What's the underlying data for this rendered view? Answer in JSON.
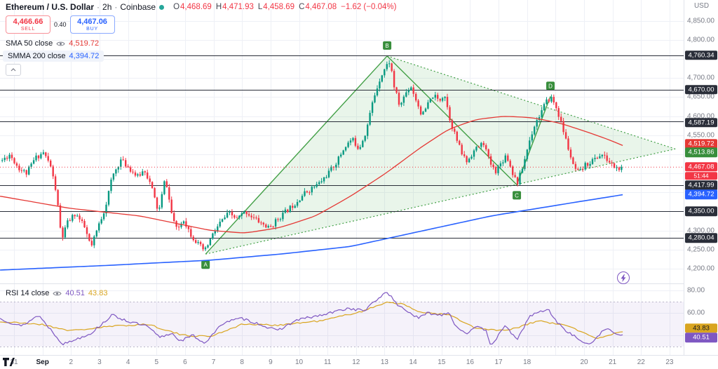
{
  "header": {
    "symbol": "Ethereum / U.S. Dollar",
    "dot": "·",
    "interval": "2h",
    "exchange": "Coinbase",
    "ohlc": {
      "o_label": "O",
      "o_value": "4,468.69",
      "h_label": "H",
      "h_value": "4,471.93",
      "l_label": "L",
      "l_value": "4,458.69",
      "c_label": "C",
      "c_value": "4,467.08",
      "change": "−1.62 (−0.04%)"
    }
  },
  "trade_panel": {
    "sell_price": "4,466.66",
    "sell_label": "SELL",
    "spread": "0.40",
    "buy_price": "4,467.06",
    "buy_label": "BUY"
  },
  "legend": {
    "sma": {
      "title": "SMA 50 close",
      "value": "4,519.72"
    },
    "smma": {
      "title": "SMMA 200 close",
      "value": "4,394.72"
    },
    "rsi": {
      "title": "RSI 14 close",
      "value": "40.51",
      "ma_value": "43.83"
    }
  },
  "palette": {
    "up": "#089981",
    "down": "#f23645",
    "sma": "#e53935",
    "smma": "#2962ff",
    "rsi": "#7e57c2",
    "rsi_ma": "#d9a520",
    "rsi_band": "rgba(126,87,194,0.08)",
    "band_line": "#b9b6c9",
    "pattern": "#43a047",
    "pattern_label": "#388e3c",
    "pattern_fill": "rgba(102,187,106,0.14)",
    "level": "#2a2e39",
    "grid": "#eef0f6",
    "divider": "#dfe2ea",
    "axis_text": "#787b86"
  },
  "price_scale": {
    "currency": "USD",
    "gridline_labels": [
      {
        "text": "4,850.00",
        "price": 4850
      },
      {
        "text": "4,800.00",
        "price": 4800
      },
      {
        "text": "4,700.00",
        "price": 4700
      },
      {
        "text": "4,650.00",
        "price": 4650
      },
      {
        "text": "4,600.00",
        "price": 4600
      },
      {
        "text": "4,550.00",
        "price": 4550
      },
      {
        "text": "4,300.00",
        "price": 4300
      },
      {
        "text": "4,250.00",
        "price": 4250
      },
      {
        "text": "4,200.00",
        "price": 4200
      }
    ],
    "badges": [
      {
        "text": "4,760.34",
        "price": 4760.34,
        "type": "level"
      },
      {
        "text": "4,670.00",
        "price": 4670.0,
        "type": "level"
      },
      {
        "text": "4,587.19",
        "price": 4587.19,
        "type": "level",
        "nudge": 2
      },
      {
        "text": "4,519.72",
        "price": 4519.72,
        "type": "sma",
        "nudge": -4
      },
      {
        "text": "4,513.86",
        "price": 4513.86,
        "type": "pattern",
        "nudge": 5
      },
      {
        "text": "4,467.08",
        "price": 4467.08,
        "type": "last",
        "countdown": "51:44"
      },
      {
        "text": "4,417.99",
        "price": 4417.99,
        "type": "level"
      },
      {
        "text": "4,394.72",
        "price": 4394.72,
        "type": "smma"
      },
      {
        "text": "4,350.00",
        "price": 4350.0,
        "type": "level"
      },
      {
        "text": "4,280.04",
        "price": 4280.04,
        "type": "level"
      }
    ]
  },
  "rsi_scale": {
    "labels": [
      {
        "text": "80.00",
        "value": 80
      },
      {
        "text": "60.00",
        "value": 60
      }
    ],
    "badges": [
      {
        "text": "43.83",
        "value": 43.83,
        "type": "rsi_ma",
        "nudge": -4
      },
      {
        "text": "40.51",
        "value": 40.51,
        "type": "rsi",
        "nudge": 4
      }
    ]
  },
  "time_scale": {
    "labels": [
      {
        "text": "31",
        "t": 0
      },
      {
        "text": "Sep",
        "t": 1,
        "bold": true
      },
      {
        "text": "2",
        "t": 2
      },
      {
        "text": "3",
        "t": 3
      },
      {
        "text": "4",
        "t": 4
      },
      {
        "text": "5",
        "t": 5
      },
      {
        "text": "6",
        "t": 6
      },
      {
        "text": "7",
        "t": 7
      },
      {
        "text": "8",
        "t": 8
      },
      {
        "text": "9",
        "t": 9
      },
      {
        "text": "10",
        "t": 10
      },
      {
        "text": "11",
        "t": 11
      },
      {
        "text": "12",
        "t": 12
      },
      {
        "text": "13",
        "t": 13
      },
      {
        "text": "14",
        "t": 14
      },
      {
        "text": "15",
        "t": 15
      },
      {
        "text": "16",
        "t": 16
      },
      {
        "text": "17",
        "t": 17
      },
      {
        "text": "18",
        "t": 18
      },
      {
        "text": "20",
        "t": 20
      },
      {
        "text": "21",
        "t": 21
      },
      {
        "text": "22",
        "t": 22
      },
      {
        "text": "23",
        "t": 23
      }
    ]
  },
  "chart_data": {
    "type": "candlestick",
    "title": "Ethereum / U.S. Dollar, 2h, Coinbase",
    "last_price": 4467.08,
    "countdown": "51:44",
    "price_axis": {
      "min": 4161,
      "max": 4905,
      "grid_step": 50,
      "grid_from": 4200,
      "grid_to": 4850
    },
    "levels": [
      4760.34,
      4670.0,
      4587.19,
      4417.99,
      4350.0,
      4280.04
    ],
    "candles": {
      "count": 257,
      "note": "anchors are [day_index, close] estimates; day 0 = Aug 31, day 1 = Sep 1",
      "anchors": [
        [
          -0.49,
          4480
        ],
        [
          -0.15,
          4500
        ],
        [
          0.15,
          4465
        ],
        [
          0.44,
          4450
        ],
        [
          0.74,
          4490
        ],
        [
          1.03,
          4505
        ],
        [
          1.28,
          4470
        ],
        [
          1.48,
          4400
        ],
        [
          1.67,
          4275
        ],
        [
          1.87,
          4320
        ],
        [
          2.16,
          4345
        ],
        [
          2.46,
          4310
        ],
        [
          2.71,
          4255
        ],
        [
          2.95,
          4310
        ],
        [
          3.2,
          4360
        ],
        [
          3.44,
          4440
        ],
        [
          3.74,
          4485
        ],
        [
          4.03,
          4465
        ],
        [
          4.33,
          4440
        ],
        [
          4.58,
          4460
        ],
        [
          4.82,
          4415
        ],
        [
          5.07,
          4345
        ],
        [
          5.31,
          4440
        ],
        [
          5.51,
          4350
        ],
        [
          5.71,
          4300
        ],
        [
          5.95,
          4330
        ],
        [
          6.2,
          4290
        ],
        [
          6.45,
          4265
        ],
        [
          6.69,
          4245
        ],
        [
          6.94,
          4285
        ],
        [
          7.23,
          4320
        ],
        [
          7.53,
          4345
        ],
        [
          7.82,
          4330
        ],
        [
          8.12,
          4350
        ],
        [
          8.36,
          4335
        ],
        [
          8.66,
          4320
        ],
        [
          8.95,
          4305
        ],
        [
          9.25,
          4330
        ],
        [
          9.54,
          4350
        ],
        [
          9.84,
          4370
        ],
        [
          10.14,
          4395
        ],
        [
          10.43,
          4410
        ],
        [
          10.73,
          4425
        ],
        [
          11.02,
          4450
        ],
        [
          11.32,
          4480
        ],
        [
          11.61,
          4520
        ],
        [
          11.86,
          4540
        ],
        [
          12.1,
          4515
        ],
        [
          12.35,
          4560
        ],
        [
          12.59,
          4640
        ],
        [
          12.84,
          4700
        ],
        [
          13.04,
          4730
        ],
        [
          13.19,
          4745
        ],
        [
          13.33,
          4680
        ],
        [
          13.53,
          4625
        ],
        [
          13.73,
          4660
        ],
        [
          13.92,
          4680
        ],
        [
          14.12,
          4640
        ],
        [
          14.32,
          4600
        ],
        [
          14.51,
          4630
        ],
        [
          14.71,
          4655
        ],
        [
          14.91,
          4640
        ],
        [
          15.1,
          4660
        ],
        [
          15.3,
          4590
        ],
        [
          15.5,
          4545
        ],
        [
          15.69,
          4505
        ],
        [
          15.89,
          4480
        ],
        [
          16.09,
          4505
        ],
        [
          16.29,
          4520
        ],
        [
          16.48,
          4530
        ],
        [
          16.68,
          4480
        ],
        [
          16.88,
          4455
        ],
        [
          17.07,
          4475
        ],
        [
          17.27,
          4500
        ],
        [
          17.47,
          4455
        ],
        [
          17.66,
          4425
        ],
        [
          17.86,
          4470
        ],
        [
          18.06,
          4530
        ],
        [
          18.25,
          4575
        ],
        [
          18.45,
          4605
        ],
        [
          18.65,
          4635
        ],
        [
          18.84,
          4650
        ],
        [
          19.04,
          4620
        ],
        [
          19.24,
          4570
        ],
        [
          19.43,
          4520
        ],
        [
          19.63,
          4465
        ],
        [
          19.83,
          4450
        ],
        [
          20.02,
          4470
        ],
        [
          20.22,
          4480
        ],
        [
          20.42,
          4490
        ],
        [
          20.61,
          4500
        ],
        [
          20.81,
          4485
        ],
        [
          21.01,
          4470
        ],
        [
          21.2,
          4460
        ],
        [
          21.4,
          4467
        ]
      ]
    },
    "sma50": {
      "period": 50,
      "last": 4519.72,
      "anchors": [
        [
          -0.49,
          4390
        ],
        [
          1.97,
          4358
        ],
        [
          4.43,
          4338
        ],
        [
          6.89,
          4300
        ],
        [
          8.12,
          4293
        ],
        [
          9.35,
          4308
        ],
        [
          10.58,
          4338
        ],
        [
          11.81,
          4390
        ],
        [
          13.04,
          4450
        ],
        [
          14.27,
          4518
        ],
        [
          15.25,
          4566
        ],
        [
          16.24,
          4592
        ],
        [
          17.22,
          4600
        ],
        [
          18.2,
          4596
        ],
        [
          19.19,
          4581
        ],
        [
          20.17,
          4557
        ],
        [
          20.91,
          4537
        ],
        [
          21.45,
          4520
        ]
      ]
    },
    "smma200": {
      "period": 200,
      "last": 4394.72,
      "anchors": [
        [
          -0.49,
          4196
        ],
        [
          3.2,
          4208
        ],
        [
          6.89,
          4222
        ],
        [
          9.35,
          4238
        ],
        [
          11.81,
          4258
        ],
        [
          14.27,
          4298
        ],
        [
          16.73,
          4338
        ],
        [
          19.19,
          4368
        ],
        [
          21.45,
          4395
        ]
      ]
    },
    "pattern": {
      "shape": "symmetrical-triangle with A-B-C-D zigzag",
      "labels": [
        "A",
        "B",
        "C",
        "D"
      ],
      "points": {
        "A": [
          6.72,
          4238
        ],
        "B": [
          13.09,
          4758
        ],
        "C": [
          17.64,
          4420
        ],
        "D": [
          18.82,
          4652
        ],
        "apex": [
          23.2,
          4514
        ]
      }
    },
    "rsi": {
      "period": 14,
      "last": 40.51,
      "ma_last": 43.83,
      "upper_band": 70,
      "lower_band": 30,
      "scale": {
        "min": 22.5,
        "max": 86.25
      },
      "anchors": [
        [
          -0.49,
          55
        ],
        [
          0.25,
          48
        ],
        [
          0.86,
          58
        ],
        [
          1.72,
          32
        ],
        [
          2.71,
          42
        ],
        [
          3.44,
          58
        ],
        [
          4.06,
          52
        ],
        [
          4.67,
          48
        ],
        [
          5.12,
          38
        ],
        [
          5.53,
          42
        ],
        [
          5.85,
          35
        ],
        [
          6.27,
          40
        ],
        [
          6.69,
          33
        ],
        [
          7.38,
          52
        ],
        [
          8,
          55
        ],
        [
          8.61,
          50
        ],
        [
          9.22,
          44
        ],
        [
          9.96,
          54
        ],
        [
          10.82,
          58
        ],
        [
          11.69,
          64
        ],
        [
          12.3,
          62
        ],
        [
          12.92,
          76
        ],
        [
          13.09,
          79
        ],
        [
          13.41,
          68
        ],
        [
          13.78,
          62
        ],
        [
          14.19,
          55
        ],
        [
          14.51,
          60
        ],
        [
          14.96,
          58
        ],
        [
          15.25,
          61
        ],
        [
          15.5,
          48
        ],
        [
          15.87,
          42
        ],
        [
          16.24,
          47
        ],
        [
          16.56,
          45
        ],
        [
          16.73,
          31
        ],
        [
          16.88,
          36
        ],
        [
          17.27,
          49
        ],
        [
          17.64,
          35
        ],
        [
          18.08,
          57
        ],
        [
          18.45,
          61
        ],
        [
          18.74,
          63
        ],
        [
          19.11,
          50
        ],
        [
          19.48,
          42
        ],
        [
          19.85,
          36
        ],
        [
          20.17,
          31
        ],
        [
          20.49,
          40
        ],
        [
          20.79,
          46
        ],
        [
          21.08,
          42
        ],
        [
          21.4,
          40.51
        ]
      ],
      "ma_anchors": [
        [
          -0.49,
          52
        ],
        [
          0.9,
          50
        ],
        [
          2,
          44
        ],
        [
          3.4,
          48
        ],
        [
          4.7,
          50
        ],
        [
          5.9,
          40
        ],
        [
          6.9,
          39
        ],
        [
          8,
          50
        ],
        [
          9.2,
          49
        ],
        [
          10.8,
          53
        ],
        [
          12.3,
          62
        ],
        [
          13.1,
          70
        ],
        [
          13.6,
          68
        ],
        [
          14.2,
          61
        ],
        [
          15.3,
          58
        ],
        [
          16.2,
          46
        ],
        [
          17.3,
          44
        ],
        [
          18.4,
          53
        ],
        [
          19.5,
          48
        ],
        [
          20.4,
          37
        ],
        [
          21.4,
          43.83
        ]
      ]
    }
  }
}
